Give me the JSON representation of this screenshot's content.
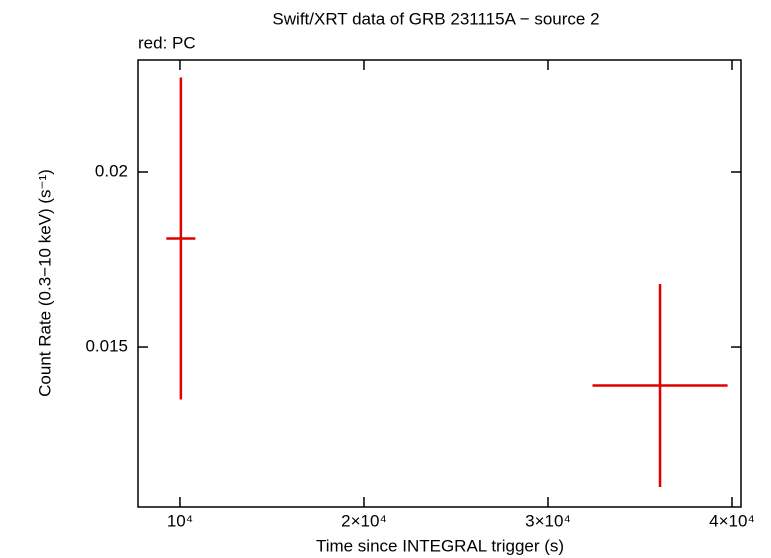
{
  "chart_data": {
    "type": "errorbar",
    "title": "Swift/XRT data of GRB 231115A − source 2",
    "annotation": "red: PC",
    "x_label": "Time since INTEGRAL trigger (s)",
    "y_label": "Count Rate (0.3−10 keV) (s⁻¹)",
    "x": [
      10050,
      36090
    ],
    "xerr": [
      790,
      3670
    ],
    "values": [
      0.0181,
      0.0139
    ],
    "yerr": [
      0.0046,
      0.0029
    ],
    "color": "#e00000",
    "xlim": [
      7720,
      40490
    ],
    "ylim": [
      0.01043,
      0.0232
    ],
    "xticks": [
      {
        "value": 10000,
        "label": "10⁴"
      },
      {
        "value": 20000,
        "label": "2×10⁴"
      },
      {
        "value": 30000,
        "label": "3×10⁴"
      },
      {
        "value": 40000,
        "label": "4×10⁴"
      }
    ],
    "yticks": [
      0.015,
      0.02
    ]
  }
}
